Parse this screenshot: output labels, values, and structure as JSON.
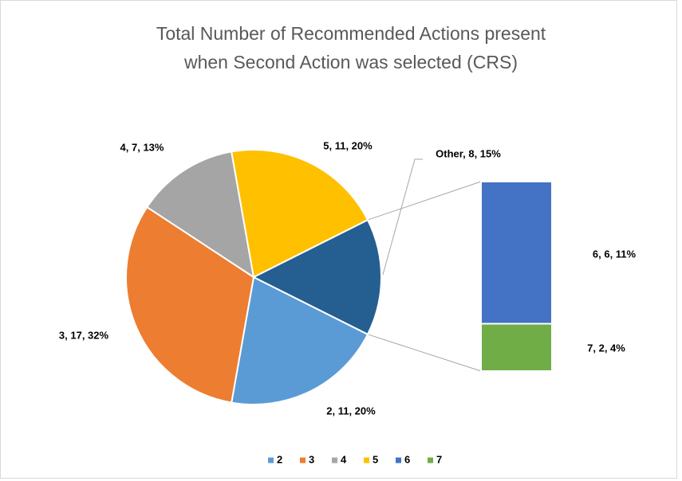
{
  "chart_data": {
    "type": "bar-of-pie",
    "title": [
      "Total Number of Recommended Actions present",
      "when Second Action was selected (CRS)"
    ],
    "categories": [
      "2",
      "3",
      "4",
      "5",
      "6",
      "7"
    ],
    "values": [
      11,
      17,
      7,
      11,
      6,
      2
    ],
    "value_labels": [
      "2, 11, 20%",
      "3, 17, 32%",
      "4, 7, 13%",
      "5, 11, 20%",
      "6, 6, 11%",
      "7, 2, 4%"
    ],
    "colors": [
      "#5b9bd5",
      "#ed7d31",
      "#a5a5a5",
      "#ffc000",
      "#4472c4",
      "#70ad47"
    ],
    "other": {
      "label": "Other, 8, 15%",
      "value": 8,
      "color": "#255e91"
    },
    "legend": "bottom"
  }
}
